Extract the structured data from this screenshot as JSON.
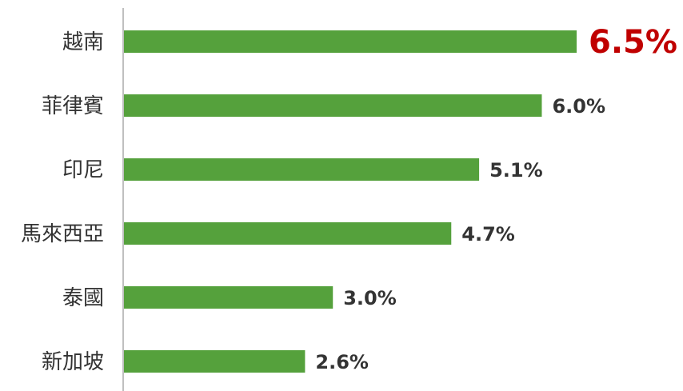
{
  "chart_data": {
    "type": "bar",
    "orientation": "horizontal",
    "categories": [
      "越南",
      "菲律賓",
      "印尼",
      "馬來西亞",
      "泰國",
      "新加坡"
    ],
    "values": [
      6.5,
      6.0,
      5.1,
      4.7,
      3.0,
      2.6
    ],
    "data_labels": [
      "6.5%",
      "6.0%",
      "5.1%",
      "4.7%",
      "3.0%",
      "2.6%"
    ],
    "unit": "%",
    "title": "",
    "xlabel": "",
    "ylabel": "",
    "xlim": [
      0,
      6.5
    ],
    "grid": false,
    "legend": "none",
    "highlighted_category": "越南",
    "colors": {
      "bar": "#55a13c",
      "axis": "#bfbfbf",
      "label_text": "#333333",
      "highlight_text": "#c00000"
    }
  }
}
